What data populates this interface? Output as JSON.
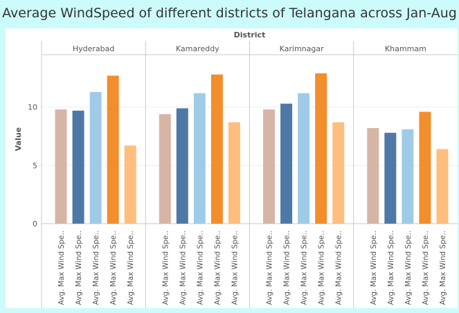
{
  "title": "Average WindSpeed of different districts of Telangana across Jan-Aug",
  "chart_data": {
    "type": "bar",
    "column_header": "District",
    "ylabel": "Value",
    "ylim": [
      0,
      14.5
    ],
    "y_ticks": [
      0,
      5,
      10
    ],
    "grid": true,
    "bar_label": "Avg. Max Wind Spe..",
    "colors": [
      "#d7b5a6",
      "#4e79a7",
      "#a0cbe8",
      "#f28e2b",
      "#ffbe7d"
    ],
    "panels": [
      {
        "district": "Hyderabad",
        "values": [
          9.8,
          9.7,
          11.3,
          12.7,
          6.7
        ]
      },
      {
        "district": "Kamareddy",
        "values": [
          9.4,
          9.9,
          11.2,
          12.8,
          8.7
        ]
      },
      {
        "district": "Karimnagar",
        "values": [
          9.8,
          10.3,
          11.2,
          12.9,
          8.7
        ]
      },
      {
        "district": "Khammam",
        "values": [
          8.2,
          7.8,
          8.1,
          9.6,
          6.4
        ]
      }
    ]
  }
}
